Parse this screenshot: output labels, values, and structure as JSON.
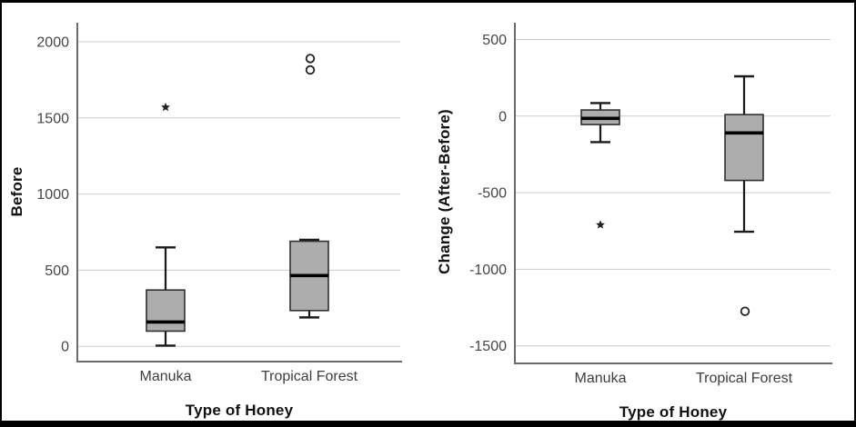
{
  "figure": {
    "description": "Two SPSS-style box plots comparing honey types",
    "x_axis_title": "Type of Honey"
  },
  "colors": {
    "box_fill": "#adadad",
    "box_stroke": "#2f2f2f",
    "median": "#000000",
    "whisker": "#1a1a1a",
    "outlier": "#222222",
    "gridline": "#cbcbcb",
    "axis_line": "#6a6a6a",
    "tick_text": "#454545",
    "label_text": "#3d3d3d",
    "frame_border": "#000000"
  },
  "chart_data": [
    {
      "type": "boxplot",
      "title": "",
      "xlabel": "Type of Honey",
      "ylabel": "Before",
      "categories": [
        "Manuka",
        "Tropical Forest"
      ],
      "yticks": [
        0,
        500,
        1000,
        1500,
        2000
      ],
      "ylim": [
        -100,
        2125
      ],
      "grid": true,
      "series": [
        {
          "name": "Manuka",
          "whisker_low": 5,
          "q1": 100,
          "median": 160,
          "q3": 370,
          "whisker_high": 650,
          "outliers": [
            {
              "value": 1570,
              "symbol": "star"
            }
          ]
        },
        {
          "name": "Tropical Forest",
          "whisker_low": 190,
          "q1": 235,
          "median": 465,
          "q3": 690,
          "whisker_high": 700,
          "outliers": [
            {
              "value": 1890,
              "symbol": "circle"
            },
            {
              "value": 1815,
              "symbol": "circle"
            }
          ]
        }
      ]
    },
    {
      "type": "boxplot",
      "title": "",
      "xlabel": "Type of Honey",
      "ylabel": "Change (After-Before)",
      "categories": [
        "Manuka",
        "Tropical Forest"
      ],
      "yticks": [
        500,
        0,
        -500,
        -1000,
        -1500
      ],
      "ylim": [
        -1615,
        610
      ],
      "grid": true,
      "series": [
        {
          "name": "Manuka",
          "whisker_low": -170,
          "q1": -55,
          "median": -15,
          "q3": 40,
          "whisker_high": 85,
          "outliers": [
            {
              "value": -710,
              "symbol": "star"
            }
          ]
        },
        {
          "name": "Tropical Forest",
          "whisker_low": -755,
          "q1": -420,
          "median": -110,
          "q3": 10,
          "whisker_high": 260,
          "outliers": [
            {
              "value": -1275,
              "symbol": "circle"
            }
          ]
        }
      ]
    }
  ]
}
